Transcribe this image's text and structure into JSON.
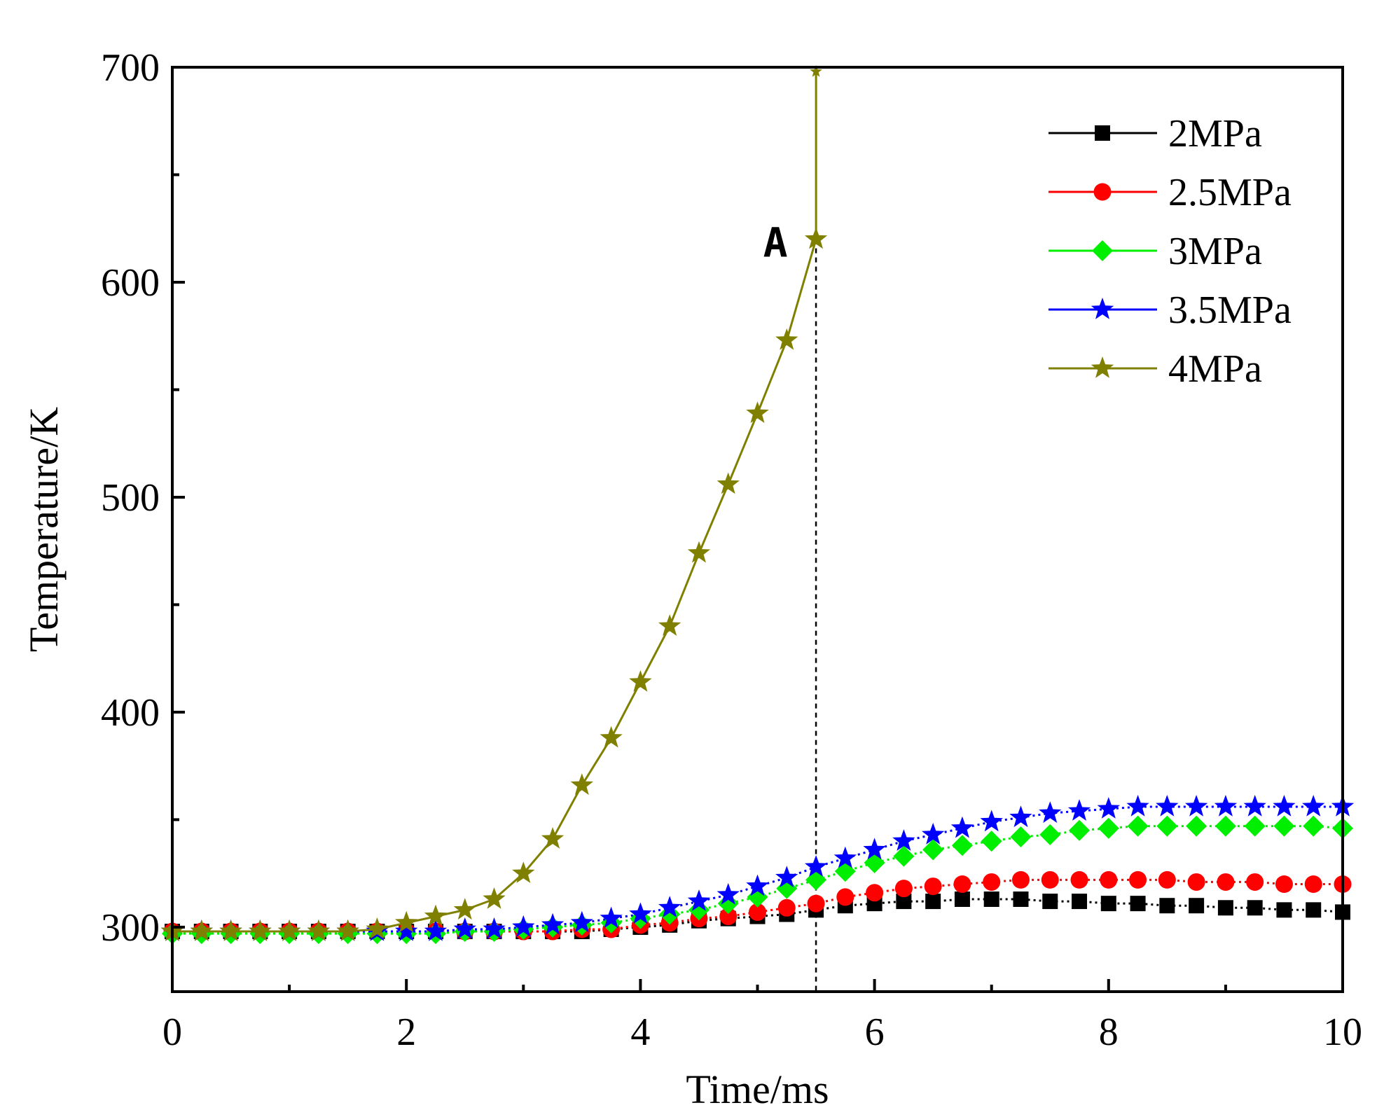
{
  "chart_data": {
    "type": "line",
    "title": "",
    "xlabel": "Time/ms",
    "ylabel": "Temperature/K",
    "xlim": [
      0,
      10
    ],
    "ylim": [
      270,
      700
    ],
    "x_ticks": [
      0,
      2,
      4,
      6,
      8,
      10
    ],
    "x_tick_labels": [
      "0",
      "2",
      "4",
      "6",
      "8",
      "10"
    ],
    "y_ticks": [
      300,
      400,
      500,
      600,
      700
    ],
    "y_tick_labels": [
      "300",
      "400",
      "500",
      "600",
      "700"
    ],
    "grid": false,
    "legend_position": "top-right",
    "series": [
      {
        "name": "2MPa",
        "color": "#000000",
        "marker": "square",
        "x": [
          0,
          0.25,
          0.5,
          0.75,
          1,
          1.25,
          1.5,
          1.75,
          2,
          2.25,
          2.5,
          2.75,
          3,
          3.25,
          3.5,
          3.75,
          4,
          4.25,
          4.5,
          4.75,
          5,
          5.25,
          5.5,
          5.75,
          6,
          6.25,
          6.5,
          6.75,
          7,
          7.25,
          7.5,
          7.75,
          8,
          8.25,
          8.5,
          8.75,
          9,
          9.25,
          9.5,
          9.75,
          10
        ],
        "y": [
          298,
          298,
          298,
          298,
          298,
          298,
          298,
          298,
          298,
          298,
          298,
          298,
          298,
          298,
          298,
          299,
          300,
          301,
          303,
          304,
          305,
          306,
          308,
          310,
          311,
          312,
          312,
          313,
          313,
          313,
          312,
          312,
          311,
          311,
          310,
          310,
          309,
          309,
          308,
          308,
          307
        ]
      },
      {
        "name": "2.5MPa",
        "color": "#ff0000",
        "marker": "circle",
        "x": [
          0,
          0.25,
          0.5,
          0.75,
          1,
          1.25,
          1.5,
          1.75,
          2,
          2.25,
          2.5,
          2.75,
          3,
          3.25,
          3.5,
          3.75,
          4,
          4.25,
          4.5,
          4.75,
          5,
          5.25,
          5.5,
          5.75,
          6,
          6.25,
          6.5,
          6.75,
          7,
          7.25,
          7.5,
          7.75,
          8,
          8.25,
          8.5,
          8.75,
          9,
          9.25,
          9.5,
          9.75,
          10
        ],
        "y": [
          298,
          298,
          298,
          298,
          298,
          298,
          298,
          298,
          298,
          298,
          298,
          298,
          298,
          298,
          299,
          299,
          301,
          302,
          304,
          305,
          307,
          309,
          311,
          314,
          316,
          318,
          319,
          320,
          321,
          322,
          322,
          322,
          322,
          322,
          322,
          321,
          321,
          321,
          320,
          320,
          320
        ]
      },
      {
        "name": "3MPa",
        "color": "#00ee00",
        "marker": "diamond",
        "x": [
          0,
          0.25,
          0.5,
          0.75,
          1,
          1.25,
          1.5,
          1.75,
          2,
          2.25,
          2.5,
          2.75,
          3,
          3.25,
          3.5,
          3.75,
          4,
          4.25,
          4.5,
          4.75,
          5,
          5.25,
          5.5,
          5.75,
          6,
          6.25,
          6.5,
          6.75,
          7,
          7.25,
          7.5,
          7.75,
          8,
          8.25,
          8.5,
          8.75,
          9,
          9.25,
          9.5,
          9.75,
          10
        ],
        "y": [
          297,
          297,
          297,
          297,
          297,
          297,
          297,
          297,
          297,
          297,
          298,
          298,
          299,
          300,
          301,
          302,
          304,
          306,
          308,
          311,
          314,
          318,
          322,
          326,
          330,
          333,
          336,
          338,
          340,
          342,
          343,
          345,
          346,
          347,
          347,
          347,
          347,
          347,
          347,
          347,
          346
        ]
      },
      {
        "name": "3.5MPa",
        "color": "#0000ff",
        "marker": "star",
        "x": [
          0,
          0.25,
          0.5,
          0.75,
          1,
          1.25,
          1.5,
          1.75,
          2,
          2.25,
          2.5,
          2.75,
          3,
          3.25,
          3.5,
          3.75,
          4,
          4.25,
          4.5,
          4.75,
          5,
          5.25,
          5.5,
          5.75,
          6,
          6.25,
          6.5,
          6.75,
          7,
          7.25,
          7.5,
          7.75,
          8,
          8.25,
          8.5,
          8.75,
          9,
          9.25,
          9.5,
          9.75,
          10
        ],
        "y": [
          298,
          298,
          298,
          298,
          298,
          298,
          298,
          298,
          298,
          298,
          299,
          299,
          300,
          301,
          302,
          304,
          306,
          309,
          312,
          315,
          319,
          323,
          328,
          332,
          336,
          340,
          343,
          346,
          349,
          351,
          353,
          354,
          355,
          356,
          356,
          356,
          356,
          356,
          356,
          356,
          356
        ]
      },
      {
        "name": "4MPa",
        "color": "#808000",
        "marker": "star",
        "x": [
          0,
          0.25,
          0.5,
          0.75,
          1,
          1.25,
          1.5,
          1.75,
          2,
          2.25,
          2.5,
          2.75,
          3,
          3.25,
          3.5,
          3.75,
          4,
          4.25,
          4.5,
          4.75,
          5,
          5.25,
          5.5,
          5.5
        ],
        "y": [
          298,
          298,
          298,
          298,
          298,
          298,
          298,
          299,
          302,
          305,
          308,
          313,
          325,
          341,
          366,
          388,
          414,
          440,
          474,
          506,
          539,
          573,
          620,
          698
        ]
      }
    ],
    "annotations": [
      {
        "text": "A",
        "x": 5.5,
        "y": 620
      }
    ],
    "reference_line": {
      "x": 5.5,
      "style": "dashed"
    }
  }
}
